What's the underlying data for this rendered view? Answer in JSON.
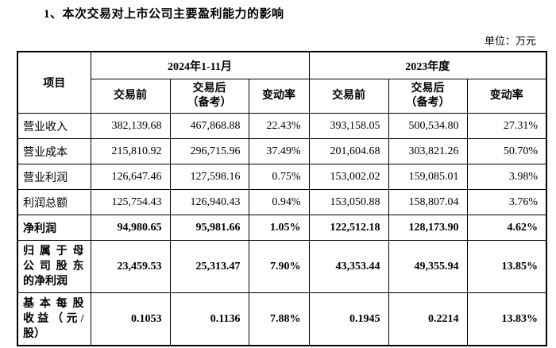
{
  "page": {
    "title": "1、本次交易对上市公司主要盈利能力的影响",
    "unit_label": "单位：万元"
  },
  "table": {
    "item_header": "项目",
    "groups": [
      {
        "label": "2024年1-11月"
      },
      {
        "label": "2023年度"
      }
    ],
    "sub_headers": [
      "交易前",
      "交易后\n（备考）",
      "变动率",
      "交易前",
      "交易后\n（备考）",
      "变动率"
    ],
    "rows": [
      {
        "label": "营业收入",
        "cells": [
          "382,139.68",
          "467,868.88",
          "22.43%",
          "393,158.05",
          "500,534.80",
          "27.31%"
        ]
      },
      {
        "label": "营业成本",
        "cells": [
          "215,810.92",
          "296,715.96",
          "37.49%",
          "201,604.68",
          "303,821.26",
          "50.70%"
        ]
      },
      {
        "label": "营业利润",
        "cells": [
          "126,647.46",
          "127,598.16",
          "0.75%",
          "153,002.02",
          "159,085.01",
          "3.98%"
        ]
      },
      {
        "label": "利润总额",
        "cells": [
          "125,754.43",
          "126,940.43",
          "0.94%",
          "153,050.88",
          "158,807.04",
          "3.76%"
        ]
      },
      {
        "label": "净利润",
        "cells": [
          "94,980.65",
          "95,981.66",
          "1.05%",
          "122,512.18",
          "128,173.90",
          "4.62%"
        ]
      },
      {
        "label": "归属于母\n公司股东\n的净利润",
        "cells": [
          "23,459.53",
          "25,313.47",
          "7.90%",
          "43,353.44",
          "49,355.94",
          "13.85%"
        ]
      },
      {
        "label": "基本每股\n收益（元/\n股）",
        "cells": [
          "0.1053",
          "0.1136",
          "7.88%",
          "0.1945",
          "0.2214",
          "13.83%"
        ]
      }
    ]
  }
}
